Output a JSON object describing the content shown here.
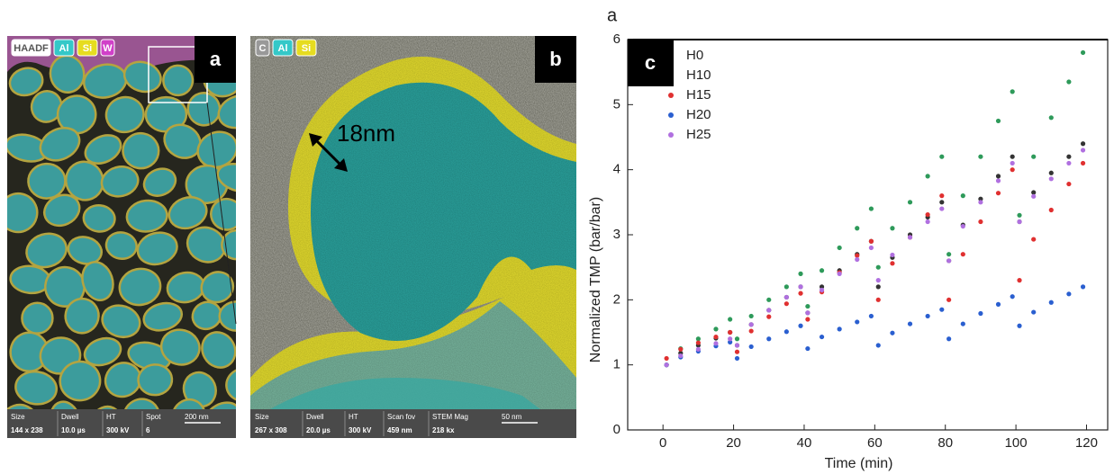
{
  "panels": [
    {
      "label": "a",
      "badges": [
        "HAADF",
        "Al",
        "Si",
        "W"
      ],
      "info_headers": [
        "Size",
        "Dwell",
        "HT",
        "Spot"
      ],
      "info_values": [
        "144 x 238",
        "10.0 µs",
        "300 kV",
        "6"
      ],
      "scale_bar": "200 nm"
    },
    {
      "label": "b",
      "badges": [
        "C",
        "Al",
        "Si"
      ],
      "annotation": "18nm",
      "info_headers": [
        "Size",
        "Dwell",
        "HT",
        "Scan fov",
        "STEM Mag"
      ],
      "info_values": [
        "267 x 308",
        "20.0 µs",
        "300 kV",
        "459 nm",
        "218 kx"
      ],
      "scale_bar": "50 nm"
    }
  ],
  "chart_data": {
    "type": "scatter",
    "panel_label": "c",
    "corner_label": "a",
    "x_label": "Time (min)",
    "y_label": "Normalized TMP (bar/bar)",
    "xlim": [
      -10,
      126
    ],
    "ylim": [
      0,
      6
    ],
    "xticks": [
      0,
      20,
      40,
      60,
      80,
      100,
      120
    ],
    "yticks": [
      0,
      1,
      2,
      3,
      4,
      5,
      6
    ],
    "x": [
      1,
      5,
      10,
      15,
      19,
      21,
      25,
      30,
      35,
      39,
      41,
      45,
      50,
      55,
      59,
      61,
      65,
      70,
      75,
      79,
      81,
      85,
      90,
      95,
      99,
      101,
      105,
      110,
      115,
      119
    ],
    "series": [
      {
        "name": "H0",
        "color": "#333333",
        "values": [
          1.0,
          1.18,
          1.3,
          1.41,
          1.5,
          1.3,
          1.62,
          1.84,
          2.04,
          2.2,
          1.8,
          2.2,
          2.45,
          2.7,
          2.9,
          2.2,
          2.65,
          3.0,
          3.27,
          3.5,
          2.6,
          3.15,
          3.55,
          3.9,
          4.2,
          3.2,
          3.65,
          3.95,
          4.2,
          4.4
        ]
      },
      {
        "name": "H10",
        "color": "#2e9a5a",
        "values": [
          1.0,
          1.25,
          1.4,
          1.55,
          1.7,
          1.4,
          1.75,
          2.0,
          2.2,
          2.4,
          1.9,
          2.45,
          2.8,
          3.1,
          3.4,
          2.5,
          3.1,
          3.5,
          3.9,
          4.2,
          2.7,
          3.6,
          4.2,
          4.75,
          5.2,
          3.3,
          4.2,
          4.8,
          5.35,
          5.8
        ]
      },
      {
        "name": "H15",
        "color": "#e03030",
        "values": [
          1.1,
          1.24,
          1.34,
          1.43,
          1.5,
          1.2,
          1.52,
          1.74,
          1.94,
          2.1,
          1.7,
          2.12,
          2.42,
          2.68,
          2.9,
          2.0,
          2.56,
          2.96,
          3.31,
          3.6,
          2.0,
          2.7,
          3.2,
          3.64,
          4.0,
          2.3,
          2.93,
          3.38,
          3.78,
          4.1
        ]
      },
      {
        "name": "H20",
        "color": "#2a5fd0",
        "values": [
          1.0,
          1.12,
          1.21,
          1.29,
          1.35,
          1.1,
          1.28,
          1.4,
          1.51,
          1.6,
          1.25,
          1.43,
          1.55,
          1.66,
          1.75,
          1.3,
          1.49,
          1.63,
          1.75,
          1.85,
          1.4,
          1.63,
          1.79,
          1.93,
          2.05,
          1.6,
          1.81,
          1.96,
          2.09,
          2.2
        ]
      },
      {
        "name": "H25",
        "color": "#b070e0",
        "values": [
          1.0,
          1.14,
          1.24,
          1.33,
          1.4,
          1.3,
          1.62,
          1.84,
          2.04,
          2.2,
          1.8,
          2.15,
          2.4,
          2.62,
          2.8,
          2.3,
          2.69,
          2.96,
          3.2,
          3.4,
          2.6,
          3.13,
          3.5,
          3.83,
          4.1,
          3.2,
          3.59,
          3.86,
          4.1,
          4.3
        ]
      }
    ]
  }
}
